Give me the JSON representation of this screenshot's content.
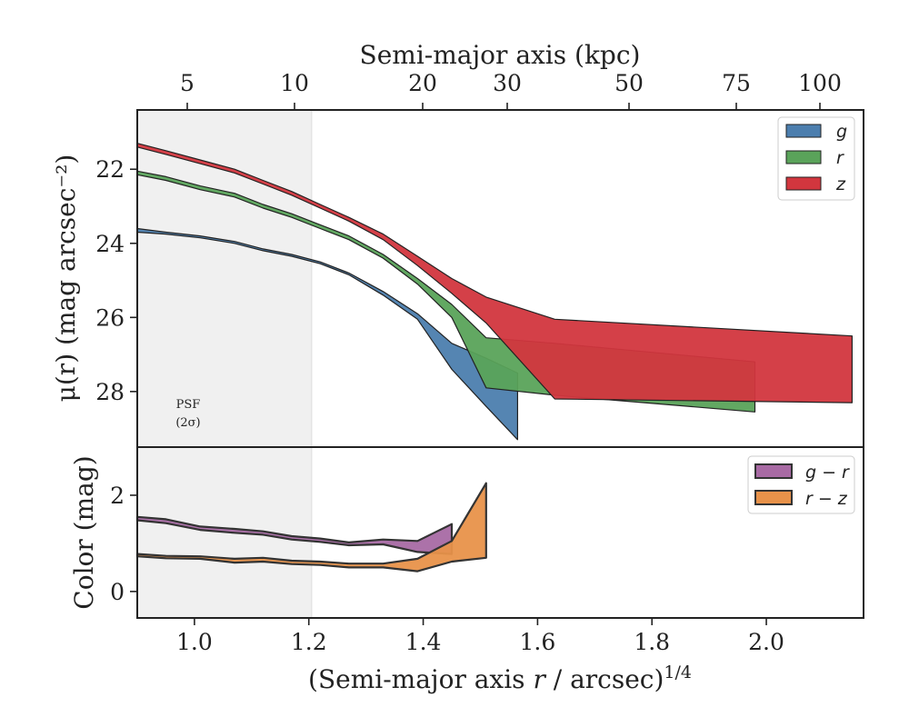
{
  "chart_data": [
    {
      "type": "area",
      "top_axis": {
        "label": "Semi-major axis (kpc)",
        "ticks": [
          5,
          10,
          20,
          30,
          50,
          75,
          100
        ],
        "tick_labels": [
          "5",
          "10",
          "20",
          "30",
          "50",
          "75",
          "100"
        ]
      },
      "ylabel": "μ(r) (mag arcsec⁻²)",
      "ylim": [
        29.5,
        20.4
      ],
      "y_inverted": true,
      "yticks": [
        22,
        24,
        26,
        28
      ],
      "ytick_labels": [
        "22",
        "24",
        "26",
        "28"
      ],
      "xlim": [
        0.9,
        2.17
      ],
      "psf_region": {
        "x_max": 1.205,
        "label_line1": "PSF",
        "label_line2": "(2σ)",
        "fill": "#f0f0f0"
      },
      "legend": {
        "placement": "upper right"
      },
      "series": [
        {
          "name": "g",
          "color": "#4c7eae",
          "upper": [
            [
              0.9,
              23.6
            ],
            [
              0.95,
              23.7
            ],
            [
              1.01,
              23.8
            ],
            [
              1.07,
              23.95
            ],
            [
              1.12,
              24.15
            ],
            [
              1.17,
              24.3
            ],
            [
              1.22,
              24.5
            ],
            [
              1.27,
              24.8
            ],
            [
              1.33,
              25.3
            ],
            [
              1.39,
              25.9
            ],
            [
              1.45,
              26.7
            ],
            [
              1.51,
              27.1
            ],
            [
              1.565,
              27.5
            ]
          ],
          "lower": [
            [
              0.9,
              23.7
            ],
            [
              0.95,
              23.75
            ],
            [
              1.01,
              23.85
            ],
            [
              1.07,
              24.0
            ],
            [
              1.12,
              24.2
            ],
            [
              1.17,
              24.35
            ],
            [
              1.22,
              24.55
            ],
            [
              1.27,
              24.85
            ],
            [
              1.33,
              25.4
            ],
            [
              1.39,
              26.05
            ],
            [
              1.45,
              27.4
            ],
            [
              1.51,
              28.4
            ],
            [
              1.565,
              29.3
            ]
          ]
        },
        {
          "name": "r",
          "color": "#5aa35a",
          "upper": [
            [
              0.9,
              22.05
            ],
            [
              0.95,
              22.2
            ],
            [
              1.01,
              22.45
            ],
            [
              1.07,
              22.65
            ],
            [
              1.12,
              22.95
            ],
            [
              1.17,
              23.2
            ],
            [
              1.22,
              23.5
            ],
            [
              1.27,
              23.8
            ],
            [
              1.33,
              24.3
            ],
            [
              1.39,
              24.95
            ],
            [
              1.45,
              25.65
            ],
            [
              1.51,
              26.55
            ],
            [
              1.63,
              26.7
            ],
            [
              1.98,
              27.2
            ]
          ],
          "lower": [
            [
              0.9,
              22.15
            ],
            [
              0.95,
              22.3
            ],
            [
              1.01,
              22.55
            ],
            [
              1.07,
              22.75
            ],
            [
              1.12,
              23.05
            ],
            [
              1.17,
              23.3
            ],
            [
              1.22,
              23.6
            ],
            [
              1.27,
              23.9
            ],
            [
              1.33,
              24.4
            ],
            [
              1.39,
              25.1
            ],
            [
              1.45,
              26.0
            ],
            [
              1.51,
              27.9
            ],
            [
              1.63,
              28.1
            ],
            [
              1.98,
              28.55
            ]
          ]
        },
        {
          "name": "z",
          "color": "#d2363e",
          "upper": [
            [
              0.9,
              21.3
            ],
            [
              0.95,
              21.5
            ],
            [
              1.01,
              21.75
            ],
            [
              1.07,
              22.0
            ],
            [
              1.12,
              22.3
            ],
            [
              1.17,
              22.6
            ],
            [
              1.22,
              22.95
            ],
            [
              1.27,
              23.3
            ],
            [
              1.33,
              23.75
            ],
            [
              1.39,
              24.35
            ],
            [
              1.45,
              24.95
            ],
            [
              1.51,
              25.45
            ],
            [
              1.63,
              26.05
            ],
            [
              2.15,
              26.5
            ]
          ],
          "lower": [
            [
              0.9,
              21.4
            ],
            [
              0.95,
              21.6
            ],
            [
              1.01,
              21.85
            ],
            [
              1.07,
              22.1
            ],
            [
              1.12,
              22.4
            ],
            [
              1.17,
              22.7
            ],
            [
              1.22,
              23.05
            ],
            [
              1.27,
              23.4
            ],
            [
              1.33,
              23.9
            ],
            [
              1.39,
              24.6
            ],
            [
              1.45,
              25.35
            ],
            [
              1.51,
              26.15
            ],
            [
              1.63,
              28.2
            ],
            [
              2.15,
              28.3
            ]
          ]
        }
      ]
    },
    {
      "type": "area",
      "xlabel": "(Semi-major axis r / arcsec)^1/4",
      "xlabel_main": "(Semi-major axis ",
      "xlabel_var": "r",
      "xlabel_unit": " / arcsec)",
      "xlabel_exp": "1/4",
      "ylabel": "Color (mag)",
      "xlim": [
        0.9,
        2.17
      ],
      "ylim": [
        -0.55,
        3.0
      ],
      "xticks": [
        1.0,
        1.2,
        1.4,
        1.6,
        1.8,
        2.0
      ],
      "xtick_labels": [
        "1.0",
        "1.2",
        "1.4",
        "1.6",
        "1.8",
        "2.0"
      ],
      "yticks": [
        0,
        2
      ],
      "ytick_labels": [
        "0",
        "2"
      ],
      "legend": {
        "placement": "upper right"
      },
      "series": [
        {
          "name": "g − r",
          "color": "#a86aa4",
          "upper": [
            [
              0.9,
              1.55
            ],
            [
              0.95,
              1.5
            ],
            [
              1.01,
              1.35
            ],
            [
              1.07,
              1.3
            ],
            [
              1.12,
              1.25
            ],
            [
              1.17,
              1.15
            ],
            [
              1.22,
              1.1
            ],
            [
              1.27,
              1.02
            ],
            [
              1.33,
              1.08
            ],
            [
              1.39,
              1.05
            ],
            [
              1.45,
              1.4
            ]
          ],
          "lower": [
            [
              0.9,
              1.48
            ],
            [
              0.95,
              1.42
            ],
            [
              1.01,
              1.28
            ],
            [
              1.07,
              1.22
            ],
            [
              1.12,
              1.18
            ],
            [
              1.17,
              1.08
            ],
            [
              1.22,
              1.03
            ],
            [
              1.27,
              0.96
            ],
            [
              1.33,
              0.98
            ],
            [
              1.39,
              0.82
            ],
            [
              1.45,
              0.78
            ]
          ]
        },
        {
          "name": "r − z",
          "color": "#e8924a",
          "upper": [
            [
              0.9,
              0.78
            ],
            [
              0.95,
              0.74
            ],
            [
              1.01,
              0.73
            ],
            [
              1.07,
              0.68
            ],
            [
              1.12,
              0.7
            ],
            [
              1.17,
              0.64
            ],
            [
              1.22,
              0.62
            ],
            [
              1.27,
              0.58
            ],
            [
              1.33,
              0.58
            ],
            [
              1.39,
              0.68
            ],
            [
              1.45,
              1.05
            ],
            [
              1.51,
              2.25
            ]
          ],
          "lower": [
            [
              0.9,
              0.73
            ],
            [
              0.95,
              0.69
            ],
            [
              1.01,
              0.68
            ],
            [
              1.07,
              0.6
            ],
            [
              1.12,
              0.62
            ],
            [
              1.17,
              0.57
            ],
            [
              1.22,
              0.55
            ],
            [
              1.27,
              0.5
            ],
            [
              1.33,
              0.5
            ],
            [
              1.39,
              0.42
            ],
            [
              1.45,
              0.62
            ],
            [
              1.51,
              0.7
            ]
          ]
        }
      ]
    }
  ]
}
